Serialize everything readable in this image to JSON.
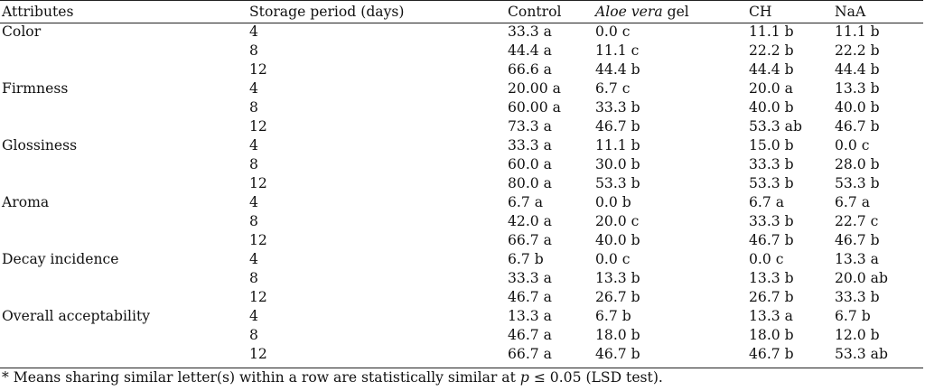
{
  "table": {
    "headers": {
      "attributes": "Attributes",
      "storage_period": "Storage period (days)",
      "control": "Control",
      "aloe_italic": "Aloe vera",
      "aloe_rest": " gel",
      "ch": "CH",
      "naa": "NaA"
    },
    "rows": [
      {
        "attribute": "Color",
        "days": "4",
        "control": "33.3 a",
        "aloe": "0.0 c",
        "ch": "11.1 b",
        "naa": "11.1 b"
      },
      {
        "attribute": "",
        "days": "8",
        "control": "44.4 a",
        "aloe": "11.1 c",
        "ch": "22.2 b",
        "naa": "22.2 b"
      },
      {
        "attribute": "",
        "days": "12",
        "control": "66.6 a",
        "aloe": "44.4 b",
        "ch": "44.4 b",
        "naa": "44.4 b"
      },
      {
        "attribute": "Firmness",
        "days": "4",
        "control": "20.00 a",
        "aloe": "6.7 c",
        "ch": "20.0 a",
        "naa": "13.3 b"
      },
      {
        "attribute": "",
        "days": "8",
        "control": "60.00 a",
        "aloe": "33.3 b",
        "ch": "40.0 b",
        "naa": "40.0 b"
      },
      {
        "attribute": "",
        "days": "12",
        "control": "73.3 a",
        "aloe": "46.7 b",
        "ch": "53.3 ab",
        "naa": "46.7 b"
      },
      {
        "attribute": "Glossiness",
        "days": "4",
        "control": "33.3 a",
        "aloe": "11.1 b",
        "ch": "15.0 b",
        "naa": "0.0 c"
      },
      {
        "attribute": "",
        "days": "8",
        "control": "60.0 a",
        "aloe": "30.0 b",
        "ch": "33.3 b",
        "naa": "28.0 b"
      },
      {
        "attribute": "",
        "days": "12",
        "control": "80.0 a",
        "aloe": "53.3 b",
        "ch": "53.3 b",
        "naa": "53.3 b"
      },
      {
        "attribute": "Aroma",
        "days": "4",
        "control": "6.7 a",
        "aloe": "0.0 b",
        "ch": "6.7 a",
        "naa": "6.7 a"
      },
      {
        "attribute": "",
        "days": "8",
        "control": "42.0 a",
        "aloe": "20.0 c",
        "ch": "33.3 b",
        "naa": "22.7 c"
      },
      {
        "attribute": "",
        "days": "12",
        "control": "66.7 a",
        "aloe": "40.0 b",
        "ch": "46.7 b",
        "naa": "46.7 b"
      },
      {
        "attribute": "Decay incidence",
        "days": "4",
        "control": "6.7 b",
        "aloe": "0.0 c",
        "ch": "0.0 c",
        "naa": "13.3 a"
      },
      {
        "attribute": "",
        "days": "8",
        "control": "33.3 a",
        "aloe": "13.3 b",
        "ch": "13.3 b",
        "naa": "20.0 ab"
      },
      {
        "attribute": "",
        "days": "12",
        "control": "46.7 a",
        "aloe": "26.7 b",
        "ch": "26.7 b",
        "naa": "33.3 b"
      },
      {
        "attribute": "Overall acceptability",
        "days": "4",
        "control": "13.3 a",
        "aloe": "6.7 b",
        "ch": "13.3 a",
        "naa": "6.7 b"
      },
      {
        "attribute": "",
        "days": "8",
        "control": "46.7 a",
        "aloe": "18.0 b",
        "ch": "18.0 b",
        "naa": "12.0 b"
      },
      {
        "attribute": "",
        "days": "12",
        "control": "66.7 a",
        "aloe": "46.7 b",
        "ch": "46.7 b",
        "naa": "53.3 ab"
      }
    ],
    "footnote": {
      "before_p": "* Means sharing similar letter(s) within a row are statistically similar at ",
      "p": "p",
      "after_p": " ≤ 0.05 (LSD test)."
    }
  }
}
